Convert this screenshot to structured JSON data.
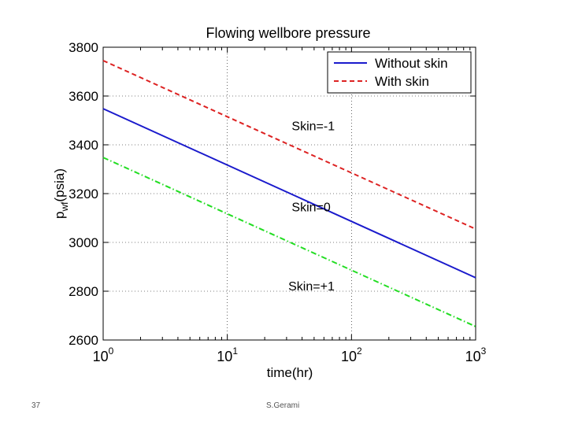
{
  "chart_data": {
    "type": "line",
    "title": "Flowing wellbore pressure",
    "xlabel": "time(hr)",
    "ylabel": {
      "base": "p",
      "sub": "wf",
      "rest": "(psia)"
    },
    "xscale": "log",
    "xlim": [
      1,
      1000
    ],
    "ylim": [
      2600,
      3800
    ],
    "xticks": [
      {
        "value": 1,
        "base": "10",
        "exp": "0"
      },
      {
        "value": 10,
        "base": "10",
        "exp": "1"
      },
      {
        "value": 100,
        "base": "10",
        "exp": "2"
      },
      {
        "value": 1000,
        "base": "10",
        "exp": "3"
      }
    ],
    "yticks": [
      2600,
      2800,
      3000,
      3200,
      3400,
      3600,
      3800
    ],
    "legend_position": "top-right",
    "series": [
      {
        "name": "With skin",
        "skin": "Skin=-1",
        "color": "#dd2222",
        "dash": "dashed",
        "x": [
          1,
          1000
        ],
        "y": [
          3745,
          3055
        ],
        "show_in_legend": true
      },
      {
        "name": "Without skin",
        "skin": "Skin=0",
        "color": "#1a1acc",
        "dash": "solid",
        "x": [
          1,
          1000
        ],
        "y": [
          3548,
          2855
        ],
        "show_in_legend": true
      },
      {
        "name": "Skin +1",
        "skin": "Skin=+1",
        "color": "#22dd22",
        "dash": "dashdot",
        "x": [
          1,
          1000
        ],
        "y": [
          3348,
          2655
        ],
        "show_in_legend": false
      }
    ],
    "legend": [
      {
        "label": "Without skin",
        "color": "#1a1acc",
        "dash": "solid"
      },
      {
        "label": "With skin",
        "color": "#dd2222",
        "dash": "dashed"
      }
    ],
    "annotations": [
      {
        "text": "Skin=-1",
        "x": 33,
        "y": 3460
      },
      {
        "text": "Skin=0",
        "x": 33,
        "y": 3127
      },
      {
        "text": "Skin=+1",
        "x": 31,
        "y": 2804
      }
    ]
  },
  "footer": {
    "page_number": "37",
    "author": "S.Gerami"
  }
}
